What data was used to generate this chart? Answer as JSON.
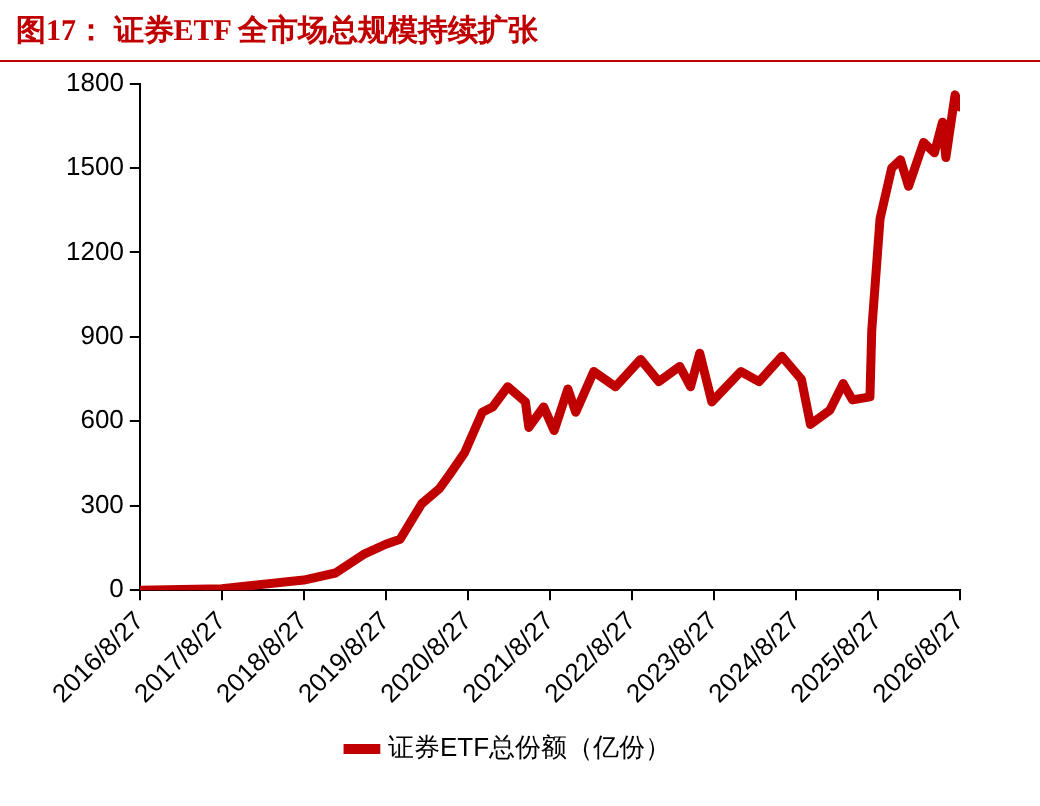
{
  "chart_data": {
    "type": "line",
    "title": "图17： 证券ETF 全市场总规模持续扩张",
    "x": [
      "2016-08-27",
      "2017-08-27",
      "2018-08-27",
      "2019-01-15",
      "2019-05-20",
      "2019-08-27",
      "2019-10-30",
      "2020-02-03",
      "2020-04-22",
      "2020-06-10",
      "2020-08-12",
      "2020-10-30",
      "2020-12-15",
      "2021-02-20",
      "2021-05-10",
      "2021-05-25",
      "2021-07-30",
      "2021-09-15",
      "2021-11-15",
      "2021-12-20",
      "2022-03-10",
      "2022-06-15",
      "2022-10-05",
      "2022-12-25",
      "2023-03-28",
      "2023-05-15",
      "2023-06-25",
      "2023-08-18",
      "2023-12-25",
      "2024-03-15",
      "2024-06-25",
      "2024-09-20",
      "2024-10-30",
      "2025-01-25",
      "2025-03-25",
      "2025-05-05",
      "2025-07-22",
      "2025-07-30",
      "2025-09-05",
      "2025-10-27",
      "2025-12-05",
      "2026-01-10",
      "2026-03-18",
      "2026-05-05",
      "2026-06-10",
      "2026-06-25",
      "2026-08-05",
      "2026-08-25"
    ],
    "series": [
      {
        "name": "证券ETF总份额（亿份）",
        "color": "#c00000",
        "values": [
          0,
          5,
          36,
          61,
          127,
          163,
          181,
          307,
          361,
          415,
          488,
          632,
          651,
          723,
          669,
          578,
          651,
          567,
          715,
          632,
          777,
          723,
          820,
          741,
          795,
          723,
          842,
          669,
          777,
          741,
          831,
          749,
          589,
          640,
          734,
          676,
          687,
          922,
          1320,
          1500,
          1529,
          1435,
          1591,
          1554,
          1663,
          1537,
          1760,
          1717
        ]
      }
    ],
    "xlim": [
      "2016-08-27",
      "2026-08-27"
    ],
    "xticks": [
      {
        "value": "2016-08-27",
        "label": "2016/8/27"
      },
      {
        "value": "2017-08-27",
        "label": "2017/8/27"
      },
      {
        "value": "2018-08-27",
        "label": "2018/8/27"
      },
      {
        "value": "2019-08-27",
        "label": "2019/8/27"
      },
      {
        "value": "2020-08-27",
        "label": "2020/8/27"
      },
      {
        "value": "2021-08-27",
        "label": "2021/8/27"
      },
      {
        "value": "2022-08-27",
        "label": "2022/8/27"
      },
      {
        "value": "2023-08-27",
        "label": "2023/8/27"
      },
      {
        "value": "2024-08-27",
        "label": "2024/8/27"
      },
      {
        "value": "2025-08-27",
        "label": "2025/8/27"
      },
      {
        "value": "2026-08-27",
        "label": "2026/8/27"
      }
    ],
    "ylim": [
      0,
      1800
    ],
    "yticks": [
      0,
      300,
      600,
      900,
      1200,
      1500,
      1800
    ],
    "grid": false,
    "legend": "bottom",
    "marker": "none",
    "line_style": "solid"
  }
}
